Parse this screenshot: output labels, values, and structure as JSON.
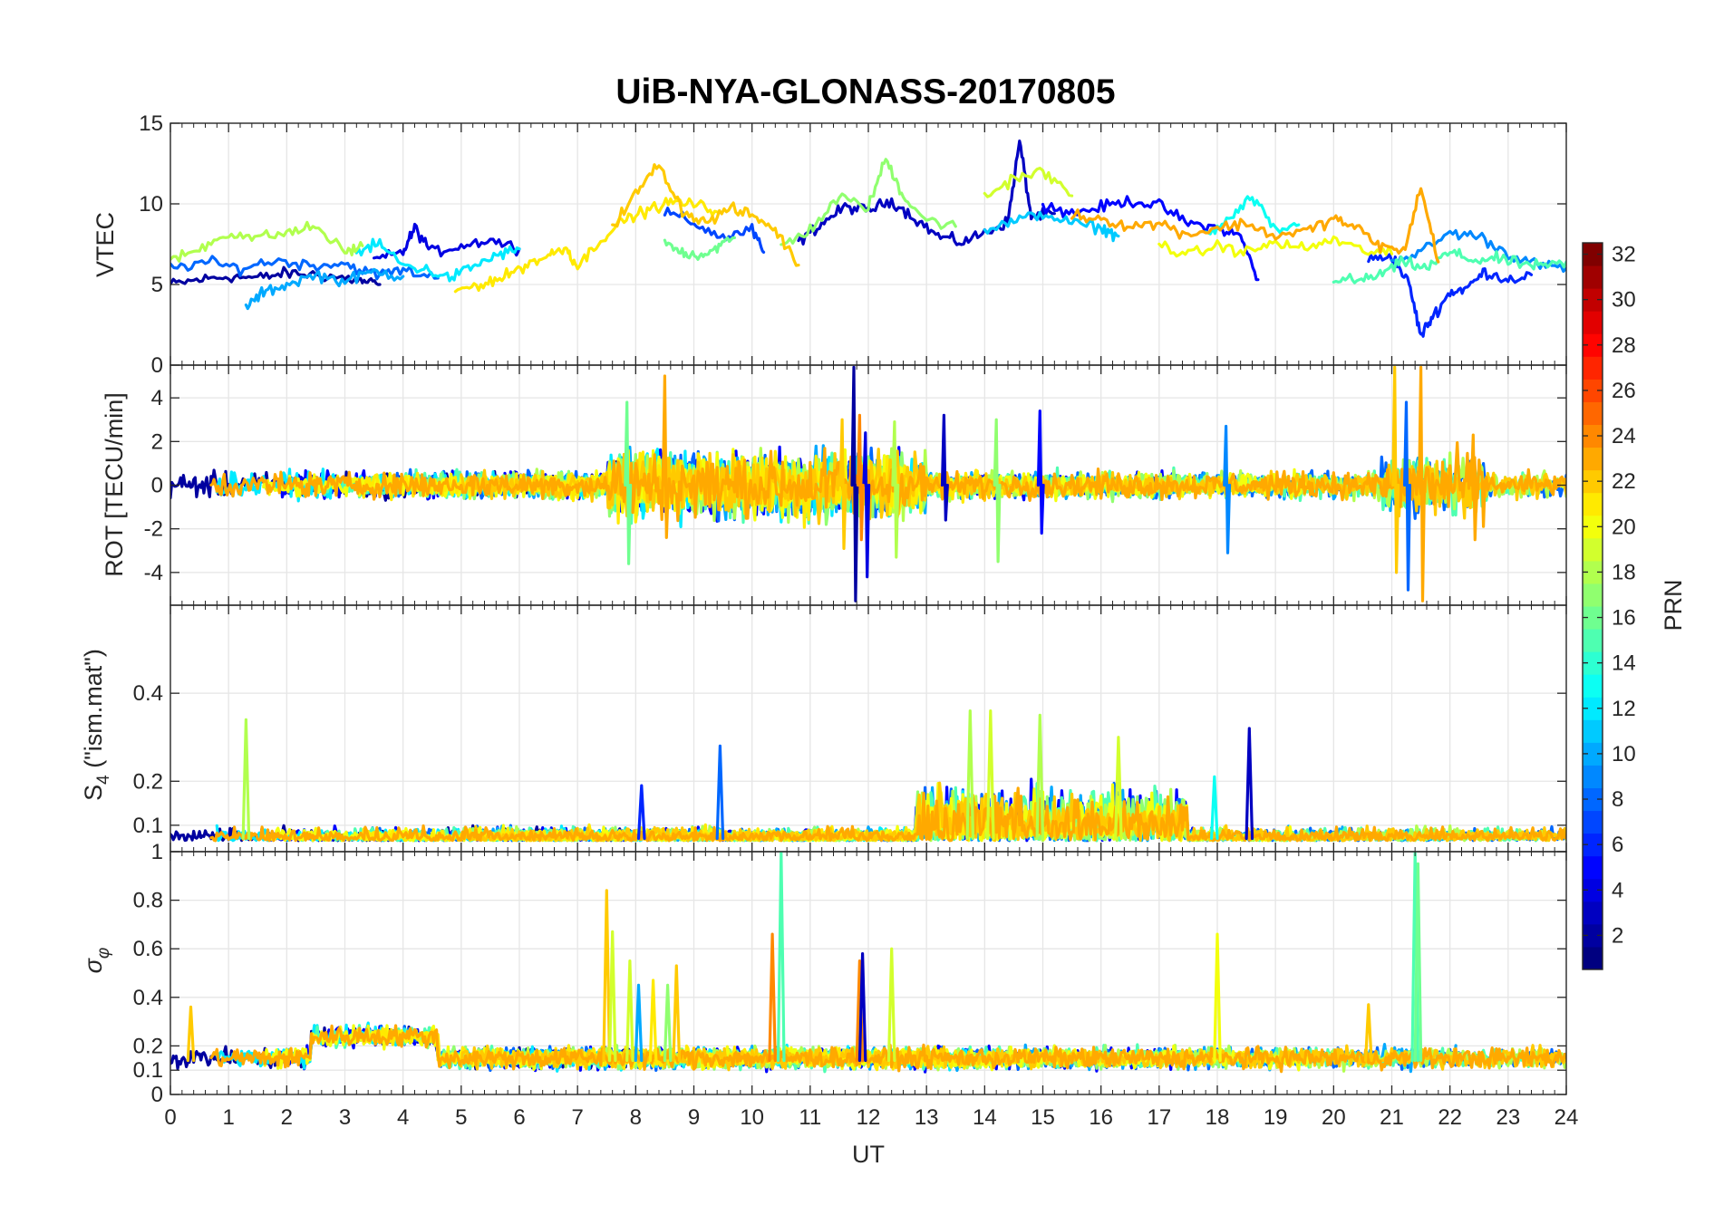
{
  "figure": {
    "title": "UiB-NYA-GLONASS-20170805"
  },
  "chart_data": {
    "type": "line",
    "title": "UiB-NYA-GLONASS-20170805",
    "x_axis": {
      "label": "UT",
      "range": [
        0,
        24
      ],
      "ticks": [
        "0",
        "1",
        "2",
        "3",
        "4",
        "5",
        "6",
        "7",
        "8",
        "9",
        "10",
        "11",
        "12",
        "13",
        "14",
        "15",
        "16",
        "17",
        "18",
        "19",
        "20",
        "21",
        "22",
        "23",
        "24"
      ]
    },
    "grid": true,
    "colorbar": {
      "label": "PRN",
      "range": [
        1,
        32
      ],
      "ticks": [
        "2",
        "4",
        "6",
        "8",
        "10",
        "12",
        "14",
        "16",
        "18",
        "20",
        "22",
        "24",
        "26",
        "28",
        "30",
        "32"
      ],
      "colormap": "jet",
      "placement": "right"
    },
    "panels": [
      {
        "id": "vtec",
        "ylabel": "VTEC",
        "ylim": [
          0,
          15
        ],
        "yticks": [
          0,
          5,
          10,
          15
        ],
        "ytick_labels": [
          "0",
          "5",
          "10",
          "15"
        ],
        "series": [
          {
            "prn": 2,
            "x": [
              0,
              0.5,
              1,
              1.5,
              2,
              2.5,
              3,
              3.3,
              3.6
            ],
            "y": [
              5.0,
              5.3,
              5.5,
              5.4,
              5.7,
              5.6,
              5.4,
              5.2,
              5.0
            ]
          },
          {
            "prn": 3,
            "x": [
              10.8,
              11.2,
              11.6,
              12,
              12.4,
              12.8,
              13.2,
              13.6,
              14.0,
              14.4,
              14.6,
              14.8,
              15.2
            ],
            "y": [
              7.6,
              8.8,
              9.8,
              9.6,
              10.2,
              9.1,
              8.0,
              7.6,
              8.2,
              8.9,
              13.9,
              9.2,
              9.4
            ]
          },
          {
            "prn": 4,
            "x": [
              3.5,
              4,
              4.2,
              4.5,
              5,
              5.5,
              6
            ],
            "y": [
              6.5,
              7.0,
              8.5,
              7.0,
              7.4,
              7.8,
              7.2
            ]
          },
          {
            "prn": 5,
            "x": [
              15,
              15.5,
              16,
              16.5,
              17,
              17.5,
              18,
              18.4,
              18.7
            ],
            "y": [
              10.0,
              9.4,
              9.8,
              10.2,
              9.9,
              8.8,
              8.5,
              8.0,
              5.3
            ]
          },
          {
            "prn": 6,
            "x": [
              20.6,
              21,
              21.3,
              21.5,
              21.7,
              22,
              22.3,
              22.6,
              23,
              23.4
            ],
            "y": [
              6.5,
              6.8,
              5.0,
              1.8,
              3.0,
              4.5,
              4.8,
              5.8,
              5.3,
              5.6
            ]
          },
          {
            "prn": 7,
            "x": [
              8.5,
              9,
              9.5,
              10,
              10.2
            ],
            "y": [
              9.5,
              8.8,
              7.9,
              8.4,
              7.0
            ]
          },
          {
            "prn": 8,
            "x": [
              0,
              0.6,
              1.2,
              1.8,
              2.4,
              3,
              3.5,
              4,
              4.6
            ],
            "y": [
              6.0,
              6.4,
              6.0,
              6.5,
              6.2,
              6.3,
              5.6,
              5.9,
              5.4
            ]
          },
          {
            "prn": 9,
            "x": [
              21,
              21.5,
              22,
              22.5,
              23,
              23.5,
              24
            ],
            "y": [
              6.5,
              7.0,
              8.2,
              8.0,
              6.9,
              6.2,
              6.0
            ]
          },
          {
            "prn": 10,
            "x": [
              1.3,
              1.6,
              2,
              2.5,
              3,
              3.5,
              4
            ],
            "y": [
              3.6,
              4.5,
              5.0,
              5.6,
              5.2,
              5.8,
              5.5
            ]
          },
          {
            "prn": 11,
            "x": [
              14,
              14.5,
              15,
              15.5,
              16,
              16.3
            ],
            "y": [
              8.4,
              8.9,
              9.4,
              8.8,
              8.5,
              8.0
            ]
          },
          {
            "prn": 12,
            "x": [
              3.2,
              3.6,
              4,
              4.4,
              4.8,
              5.2,
              5.6,
              6.0
            ],
            "y": [
              7.0,
              7.5,
              6.2,
              5.9,
              5.4,
              6.1,
              6.8,
              7.2
            ]
          },
          {
            "prn": 13,
            "x": [
              17.8,
              18.2,
              18.6,
              19.0,
              19.4
            ],
            "y": [
              8.0,
              9.0,
              10.4,
              8.3,
              8.7
            ]
          },
          {
            "prn": 15,
            "x": [
              20,
              20.4,
              20.8,
              21.2,
              21.6,
              22,
              22.4,
              22.8,
              23.2,
              23.6,
              24
            ],
            "y": [
              5.4,
              5.2,
              5.6,
              6.4,
              6.0,
              7.0,
              6.5,
              6.6,
              6.3,
              6.1,
              6.4
            ]
          },
          {
            "prn": 16,
            "x": [
              8.5,
              8.8,
              9.1,
              9.4,
              9.7
            ],
            "y": [
              7.5,
              7.0,
              6.8,
              7.3,
              7.9
            ]
          },
          {
            "prn": 17,
            "x": [
              10.5,
              11,
              11.5,
              12,
              12.3,
              12.6,
              13,
              13.5
            ],
            "y": [
              7.4,
              8.4,
              10.4,
              9.8,
              12.8,
              10.5,
              9.0,
              8.6
            ]
          },
          {
            "prn": 18,
            "x": [
              0,
              0.5,
              1,
              1.5,
              2,
              2.5,
              3,
              3.3
            ],
            "y": [
              6.5,
              7.2,
              8.2,
              7.9,
              8.2,
              8.6,
              7.0,
              7.4
            ]
          },
          {
            "prn": 19,
            "x": [
              14,
              14.5,
              15,
              15.5
            ],
            "y": [
              10.4,
              11.6,
              12.0,
              10.5
            ]
          },
          {
            "prn": 20,
            "x": [
              17,
              17.5,
              18,
              18.5,
              19,
              19.5,
              20,
              20.5,
              21
            ],
            "y": [
              7.5,
              6.8,
              7.4,
              7.0,
              7.6,
              7.2,
              7.8,
              7.1,
              6.9
            ]
          },
          {
            "prn": 21,
            "x": [
              4.9,
              5.3,
              5.7,
              6.1,
              6.5,
              6.8,
              7.0,
              7.4,
              7.8,
              8.2,
              8.6,
              9.0,
              9.4
            ],
            "y": [
              4.6,
              5.0,
              5.4,
              6.2,
              6.8,
              7.3,
              6.1,
              7.8,
              9.0,
              9.6,
              10.1,
              10.0,
              9.5
            ]
          },
          {
            "prn": 22,
            "x": [
              7.6,
              8.0,
              8.4,
              8.8,
              9.2,
              9.6,
              10,
              10.4,
              10.8
            ],
            "y": [
              8.6,
              10.6,
              12.5,
              9.6,
              8.8,
              9.7,
              9.3,
              8.4,
              6.2
            ]
          },
          {
            "prn": 23,
            "x": [
              15.5,
              16,
              16.5,
              17,
              17.5,
              18,
              18.5,
              19,
              19.6,
              20,
              20.4,
              20.8,
              21.2,
              21.5,
              21.8
            ],
            "y": [
              9.3,
              9.1,
              8.6,
              8.8,
              8.1,
              8.5,
              8.8,
              8.0,
              8.4,
              9.1,
              8.5,
              7.4,
              7.0,
              11.0,
              6.4
            ]
          }
        ]
      },
      {
        "id": "rot",
        "ylabel": "ROT [TECU/min]",
        "ylim": [
          -5.5,
          5.5
        ],
        "yticks": [
          -4,
          -2,
          0,
          2,
          4
        ],
        "ytick_labels": [
          "-4",
          "-2",
          "0",
          "2",
          "4"
        ],
        "spikes": [
          {
            "prn": 2,
            "x": 11.75,
            "y": [
              -5.3,
              5.4
            ]
          },
          {
            "prn": 4,
            "x": 11.95,
            "y": [
              -4.2,
              2.4
            ]
          },
          {
            "prn": 16,
            "x": 7.85,
            "y": [
              -3.6,
              3.8
            ]
          },
          {
            "prn": 23,
            "x": 8.5,
            "y": [
              -2.4,
              5.0
            ]
          },
          {
            "prn": 22,
            "x": 11.55,
            "y": [
              -2.9,
              3.0
            ]
          },
          {
            "prn": 24,
            "x": 11.85,
            "y": [
              -2.5,
              3.2
            ]
          },
          {
            "prn": 18,
            "x": 12.45,
            "y": [
              -3.3,
              2.9
            ]
          },
          {
            "prn": 3,
            "x": 13.3,
            "y": [
              -1.6,
              3.2
            ]
          },
          {
            "prn": 17,
            "x": 14.2,
            "y": [
              -3.5,
              3.0
            ]
          },
          {
            "prn": 5,
            "x": 14.95,
            "y": [
              -2.2,
              3.4
            ]
          },
          {
            "prn": 9,
            "x": 18.15,
            "y": [
              -3.1,
              2.7
            ]
          },
          {
            "prn": 22,
            "x": 21.05,
            "y": [
              -4.0,
              5.4
            ]
          },
          {
            "prn": 8,
            "x": 21.25,
            "y": [
              -4.8,
              3.8
            ]
          },
          {
            "prn": 23,
            "x": 21.5,
            "y": [
              -5.3,
              5.4
            ]
          },
          {
            "prn": 23,
            "x": 22.4,
            "y": [
              -2.5,
              2.3
            ]
          }
        ]
      },
      {
        "id": "s4",
        "ylabel": "S4 (\"ism.mat\")",
        "ylim": [
          0.04,
          0.6
        ],
        "yticks": [
          0.1,
          0.2,
          0.4
        ],
        "ytick_labels": [
          "0.1",
          "0.2",
          "0.4"
        ],
        "spikes": [
          {
            "prn": 18,
            "x": 1.3,
            "y": 0.34
          },
          {
            "prn": 8,
            "x": 9.45,
            "y": 0.28
          },
          {
            "prn": 6,
            "x": 8.1,
            "y": 0.19
          },
          {
            "prn": 18,
            "x": 13.75,
            "y": 0.36
          },
          {
            "prn": 19,
            "x": 14.1,
            "y": 0.36
          },
          {
            "prn": 18,
            "x": 14.95,
            "y": 0.35
          },
          {
            "prn": 19,
            "x": 16.3,
            "y": 0.3
          },
          {
            "prn": 3,
            "x": 18.55,
            "y": 0.32
          },
          {
            "prn": 13,
            "x": 17.95,
            "y": 0.21
          }
        ]
      },
      {
        "id": "sigma_phi",
        "ylabel": "σφ",
        "ylim": [
          0,
          1
        ],
        "yticks": [
          0,
          0.1,
          0.2,
          0.4,
          0.6,
          0.8,
          1
        ],
        "ytick_labels": [
          "0",
          "0.1",
          "0.2",
          "0.4",
          "0.6",
          "0.8",
          "1"
        ],
        "spikes": [
          {
            "prn": 22,
            "x": 0.35,
            "y": 0.36
          },
          {
            "prn": 22,
            "x": 7.5,
            "y": 0.84
          },
          {
            "prn": 19,
            "x": 7.6,
            "y": 0.67
          },
          {
            "prn": 19,
            "x": 7.9,
            "y": 0.55
          },
          {
            "prn": 10,
            "x": 8.05,
            "y": 0.45
          },
          {
            "prn": 21,
            "x": 8.3,
            "y": 0.47
          },
          {
            "prn": 17,
            "x": 8.55,
            "y": 0.45
          },
          {
            "prn": 22,
            "x": 8.7,
            "y": 0.53
          },
          {
            "prn": 24,
            "x": 10.35,
            "y": 0.66
          },
          {
            "prn": 15,
            "x": 10.5,
            "y": 1.0
          },
          {
            "prn": 24,
            "x": 11.85,
            "y": 0.55
          },
          {
            "prn": 3,
            "x": 11.9,
            "y": 0.58
          },
          {
            "prn": 19,
            "x": 12.4,
            "y": 0.6
          },
          {
            "prn": 20,
            "x": 18.0,
            "y": 0.66
          },
          {
            "prn": 22,
            "x": 20.6,
            "y": 0.37
          },
          {
            "prn": 15,
            "x": 21.4,
            "y": 1.0
          },
          {
            "prn": 16,
            "x": 21.45,
            "y": 0.95
          }
        ]
      }
    ]
  }
}
